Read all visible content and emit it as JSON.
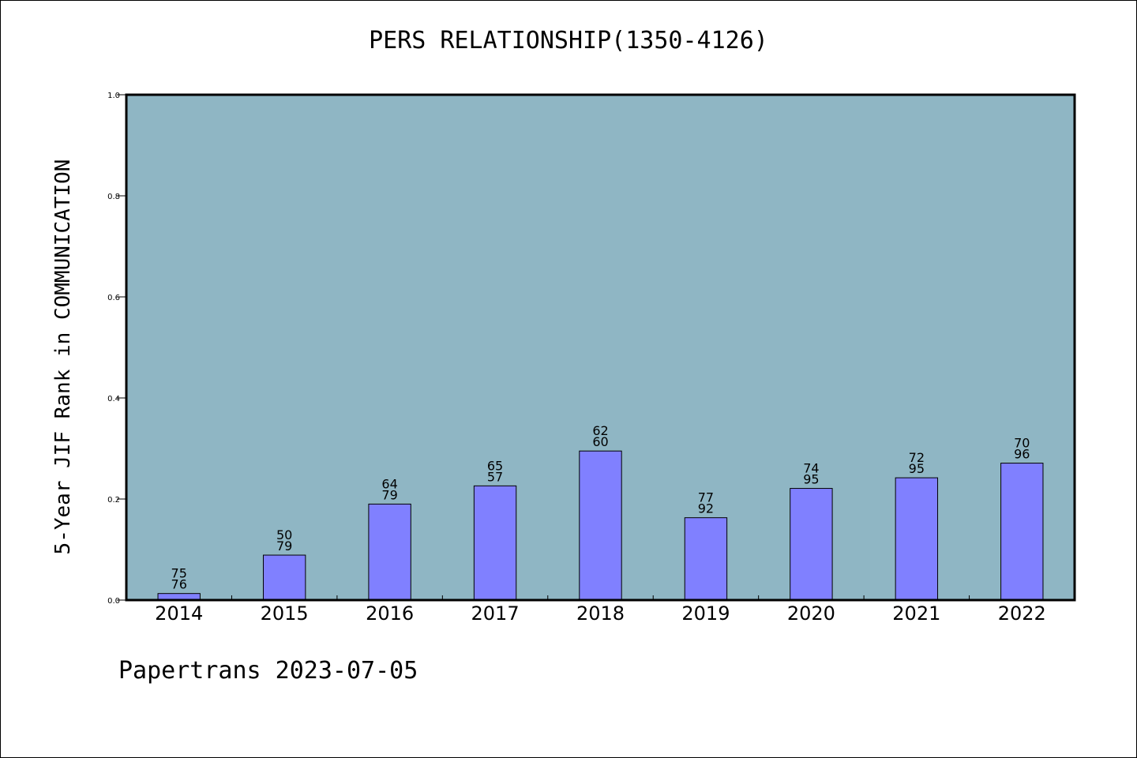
{
  "title": "PERS RELATIONSHIP(1350-4126)",
  "footer": "Papertrans 2023-07-05",
  "colors": {
    "plot_background": "#8fb6c4",
    "bar_fill": "#8080ff",
    "bar_stroke": "#000000"
  },
  "chart_data": {
    "type": "bar",
    "title": "PERS RELATIONSHIP(1350-4126)",
    "xlabel": "",
    "ylabel": "5-Year JIF Rank in COMMUNICATION",
    "ylim": [
      0,
      1.0
    ],
    "yticks": [
      "0.0",
      "0.2",
      "0.4",
      "0.6",
      "0.8",
      "1.0"
    ],
    "grid": false,
    "categories": [
      "2014",
      "2015",
      "2016",
      "2017",
      "2018",
      "2019",
      "2020",
      "2021",
      "2022"
    ],
    "values": [
      0.013,
      0.089,
      0.19,
      0.226,
      0.295,
      0.163,
      0.221,
      0.242,
      0.271
    ],
    "labels_top": [
      "75",
      "50",
      "64",
      "65",
      "62",
      "77",
      "74",
      "72",
      "70"
    ],
    "labels_bottom": [
      "76",
      "79",
      "79",
      "57",
      "60",
      "92",
      "95",
      "95",
      "96"
    ]
  }
}
